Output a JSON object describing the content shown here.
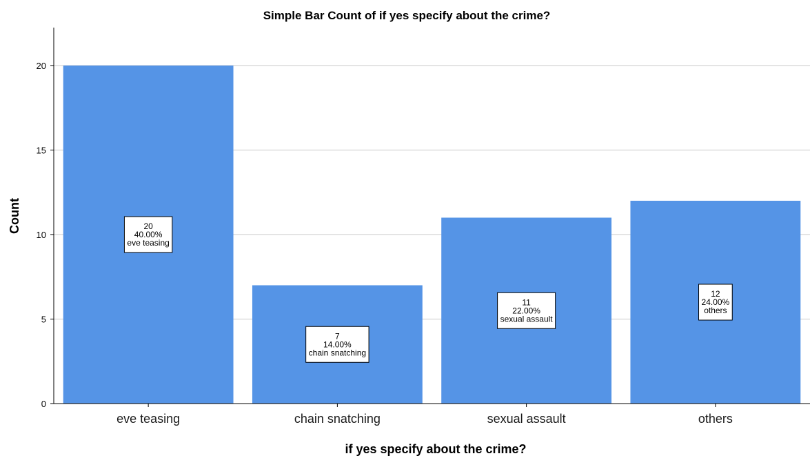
{
  "chart_data": {
    "type": "bar",
    "title": "Simple Bar Count of if yes specify about the crime?",
    "xlabel": "if yes specify about the crime?",
    "ylabel": "Count",
    "categories": [
      "eve teasing",
      "chain snatching",
      "sexual assault",
      "others"
    ],
    "values": [
      20,
      7,
      11,
      12
    ],
    "percentages": [
      "40.00%",
      "14.00%",
      "22.00%",
      "24.00%"
    ],
    "ylim": [
      0,
      22
    ],
    "yticks": [
      0,
      5,
      10,
      15,
      20
    ],
    "grid": true,
    "bar_color": "#5594e6",
    "data_labels": [
      {
        "count": "20",
        "percent": "40.00%",
        "category": "eve teasing"
      },
      {
        "count": "7",
        "percent": "14.00%",
        "category": "chain snatching"
      },
      {
        "count": "11",
        "percent": "22.00%",
        "category": "sexual assault"
      },
      {
        "count": "12",
        "percent": "24.00%",
        "category": "others"
      }
    ]
  }
}
